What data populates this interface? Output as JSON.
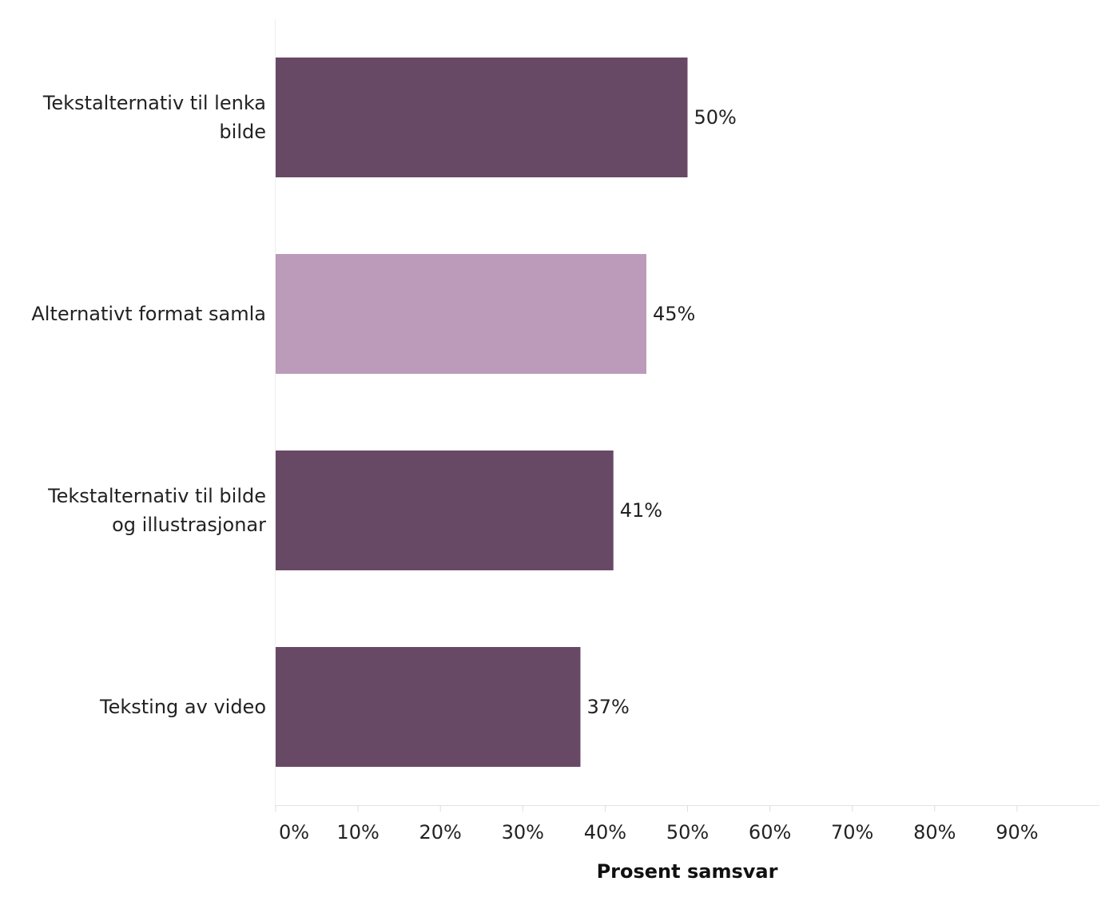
{
  "chart_data": {
    "type": "bar",
    "orientation": "horizontal",
    "categories": [
      [
        "Tekstalternativ til lenka",
        "bilde"
      ],
      [
        "Alternativt format samla"
      ],
      [
        "Tekstalternativ til bilde",
        "og illustrasjonar"
      ],
      [
        "Teksting av video"
      ]
    ],
    "values": [
      50,
      45,
      41,
      37
    ],
    "data_labels": [
      "50%",
      "45%",
      "41%",
      "37%"
    ],
    "bar_colors": [
      "#684965",
      "#bb9aba",
      "#684965",
      "#684965"
    ],
    "x_ticks": [
      0,
      10,
      20,
      30,
      40,
      50,
      60,
      70,
      80,
      90
    ],
    "x_tick_labels": [
      "0%",
      "10%",
      "20%",
      "30%",
      "40%",
      "50%",
      "60%",
      "70%",
      "80%",
      "90%"
    ],
    "xlim": [
      0,
      100
    ],
    "xlabel": "Prosent samsvar",
    "ylabel": "",
    "grid": false,
    "legend": "none"
  }
}
